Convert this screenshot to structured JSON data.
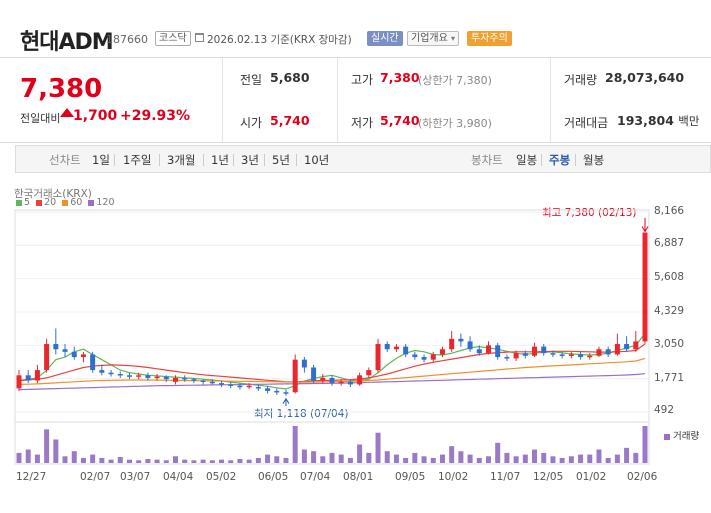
{
  "header": {
    "name": "현대ADM",
    "code": "187660",
    "market_tag": "코스닥",
    "date": "2026.02.13",
    "basis": "기준(KRX 장마감)",
    "realtime_tag": "실시간",
    "company_tag": "기업개요",
    "warning_tag": "투자주의"
  },
  "summary": {
    "price": "7,380",
    "change_label": "전일대비",
    "change_amount": "1,700",
    "change_percent": "+29.93%",
    "prev_close_label": "전일",
    "prev_close": "5,680",
    "open_label": "시가",
    "open": "5,740",
    "high_label": "고가",
    "high": "7,380",
    "high_sub": "(상한가 7,380)",
    "low_label": "저가",
    "low": "5,740",
    "low_sub": "(하한가 3,980)",
    "volume_label": "거래량",
    "volume": "28,073,640",
    "amount_label": "거래대금",
    "amount": "193,804",
    "amount_unit": "백만"
  },
  "toolbar": {
    "line_label": "선차트",
    "periods": [
      "1일",
      "1주일",
      "3개월",
      "1년",
      "3년",
      "5년",
      "10년"
    ],
    "candle_label": "봉차트",
    "candles": [
      "일봉",
      "주봉",
      "월봉"
    ],
    "active_candle": "주봉"
  },
  "chart_data": {
    "type": "candlestick",
    "source": "한국거래소(KRX)",
    "legend": [
      {
        "name": "5",
        "color": "#5cb85c"
      },
      {
        "name": "20",
        "color": "#e8433a"
      },
      {
        "name": "60",
        "color": "#f0902c"
      },
      {
        "name": "120",
        "color": "#9a6fc8"
      }
    ],
    "y_ticks": [
      "8,166",
      "6,887",
      "5,608",
      "4,329",
      "3,050",
      "1,771",
      "492"
    ],
    "x_ticks": [
      "12/27",
      "02/07",
      "03/07",
      "04/04",
      "05/02",
      "06/05",
      "07/04",
      "08/01",
      "09/05",
      "10/02",
      "11/07",
      "12/05",
      "01/02",
      "02/06"
    ],
    "ylim": [
      492,
      8166
    ],
    "max_label": "최고 7,380 (02/13)",
    "min_label": "최저 1,118 (07/04)",
    "volume_label": "거래량",
    "candles": [
      {
        "o": 1400,
        "c": 1900,
        "h": 2100,
        "l": 1300
      },
      {
        "o": 1900,
        "c": 1700,
        "h": 2100,
        "l": 1600
      },
      {
        "o": 1700,
        "c": 2100,
        "h": 2300,
        "l": 1600
      },
      {
        "o": 2100,
        "c": 3100,
        "h": 3300,
        "l": 2000
      },
      {
        "o": 3100,
        "c": 2900,
        "h": 3700,
        "l": 2700
      },
      {
        "o": 2900,
        "c": 2800,
        "h": 3100,
        "l": 2600
      },
      {
        "o": 2800,
        "c": 2600,
        "h": 3000,
        "l": 2500
      },
      {
        "o": 2600,
        "c": 2700,
        "h": 2800,
        "l": 2400
      },
      {
        "o": 2700,
        "c": 2100,
        "h": 2800,
        "l": 2000
      },
      {
        "o": 2100,
        "c": 2000,
        "h": 2300,
        "l": 1900
      },
      {
        "o": 2000,
        "c": 1950,
        "h": 2100,
        "l": 1850
      },
      {
        "o": 1950,
        "c": 1900,
        "h": 2050,
        "l": 1800
      },
      {
        "o": 1900,
        "c": 1850,
        "h": 2000,
        "l": 1750
      },
      {
        "o": 1850,
        "c": 1900,
        "h": 2000,
        "l": 1750
      },
      {
        "o": 1900,
        "c": 1800,
        "h": 2000,
        "l": 1700
      },
      {
        "o": 1800,
        "c": 1850,
        "h": 1950,
        "l": 1700
      },
      {
        "o": 1850,
        "c": 1750,
        "h": 1900,
        "l": 1650
      },
      {
        "o": 1650,
        "c": 1800,
        "h": 1900,
        "l": 1550
      },
      {
        "o": 1800,
        "c": 1750,
        "h": 1900,
        "l": 1650
      },
      {
        "o": 1750,
        "c": 1700,
        "h": 1800,
        "l": 1600
      },
      {
        "o": 1700,
        "c": 1650,
        "h": 1750,
        "l": 1550
      },
      {
        "o": 1650,
        "c": 1600,
        "h": 1750,
        "l": 1550
      },
      {
        "o": 1600,
        "c": 1550,
        "h": 1700,
        "l": 1450
      },
      {
        "o": 1550,
        "c": 1500,
        "h": 1650,
        "l": 1400
      },
      {
        "o": 1500,
        "c": 1450,
        "h": 1600,
        "l": 1350
      },
      {
        "o": 1450,
        "c": 1500,
        "h": 1600,
        "l": 1380
      },
      {
        "o": 1450,
        "c": 1400,
        "h": 1550,
        "l": 1300
      },
      {
        "o": 1400,
        "c": 1300,
        "h": 1500,
        "l": 1200
      },
      {
        "o": 1300,
        "c": 1250,
        "h": 1400,
        "l": 1150
      },
      {
        "o": 1250,
        "c": 1200,
        "h": 1350,
        "l": 1118
      },
      {
        "o": 1250,
        "c": 2500,
        "h": 2700,
        "l": 1200
      },
      {
        "o": 2500,
        "c": 2200,
        "h": 2600,
        "l": 2000
      },
      {
        "o": 2200,
        "c": 1700,
        "h": 2300,
        "l": 1600
      },
      {
        "o": 1700,
        "c": 1800,
        "h": 1950,
        "l": 1600
      },
      {
        "o": 1800,
        "c": 1600,
        "h": 1900,
        "l": 1500
      },
      {
        "o": 1600,
        "c": 1650,
        "h": 1750,
        "l": 1500
      },
      {
        "o": 1650,
        "c": 1550,
        "h": 1750,
        "l": 1450
      },
      {
        "o": 1550,
        "c": 1900,
        "h": 2000,
        "l": 1500
      },
      {
        "o": 1900,
        "c": 2100,
        "h": 2200,
        "l": 1800
      },
      {
        "o": 2100,
        "c": 3100,
        "h": 3300,
        "l": 2000
      },
      {
        "o": 3100,
        "c": 2900,
        "h": 3200,
        "l": 2800
      },
      {
        "o": 2900,
        "c": 3000,
        "h": 3100,
        "l": 2800
      },
      {
        "o": 3000,
        "c": 2700,
        "h": 3100,
        "l": 2600
      },
      {
        "o": 2700,
        "c": 2600,
        "h": 2800,
        "l": 2500
      },
      {
        "o": 2600,
        "c": 2500,
        "h": 2700,
        "l": 2400
      },
      {
        "o": 2500,
        "c": 2700,
        "h": 2800,
        "l": 2400
      },
      {
        "o": 2700,
        "c": 2900,
        "h": 3000,
        "l": 2600
      },
      {
        "o": 2900,
        "c": 3300,
        "h": 3600,
        "l": 2800
      },
      {
        "o": 3300,
        "c": 3200,
        "h": 3500,
        "l": 3000
      },
      {
        "o": 3200,
        "c": 2900,
        "h": 3400,
        "l": 2800
      },
      {
        "o": 2900,
        "c": 2750,
        "h": 3050,
        "l": 2650
      },
      {
        "o": 2750,
        "c": 3050,
        "h": 3200,
        "l": 2700
      },
      {
        "o": 3050,
        "c": 2600,
        "h": 3150,
        "l": 2500
      },
      {
        "o": 2600,
        "c": 2550,
        "h": 2700,
        "l": 2450
      },
      {
        "o": 2550,
        "c": 2750,
        "h": 2850,
        "l": 2450
      },
      {
        "o": 2750,
        "c": 2650,
        "h": 2850,
        "l": 2550
      },
      {
        "o": 2650,
        "c": 3000,
        "h": 3150,
        "l": 2600
      },
      {
        "o": 3000,
        "c": 2750,
        "h": 3100,
        "l": 2650
      },
      {
        "o": 2750,
        "c": 2700,
        "h": 2850,
        "l": 2600
      },
      {
        "o": 2700,
        "c": 2650,
        "h": 2800,
        "l": 2550
      },
      {
        "o": 2650,
        "c": 2700,
        "h": 2800,
        "l": 2550
      },
      {
        "o": 2700,
        "c": 2600,
        "h": 2800,
        "l": 2500
      },
      {
        "o": 2600,
        "c": 2650,
        "h": 2750,
        "l": 2500
      },
      {
        "o": 2650,
        "c": 2900,
        "h": 3000,
        "l": 2600
      },
      {
        "o": 2900,
        "c": 2700,
        "h": 3000,
        "l": 2600
      },
      {
        "o": 2700,
        "c": 3100,
        "h": 3500,
        "l": 2650
      },
      {
        "o": 3100,
        "c": 2900,
        "h": 3400,
        "l": 2800
      },
      {
        "o": 2900,
        "c": 3200,
        "h": 3600,
        "l": 2800
      },
      {
        "o": 3200,
        "c": 7380,
        "h": 7380,
        "l": 3100
      }
    ],
    "volume": [
      30,
      40,
      25,
      100,
      70,
      20,
      35,
      15,
      25,
      15,
      10,
      18,
      10,
      8,
      12,
      10,
      8,
      20,
      10,
      8,
      10,
      8,
      10,
      8,
      12,
      10,
      15,
      25,
      20,
      15,
      110,
      40,
      35,
      20,
      30,
      25,
      15,
      55,
      30,
      90,
      35,
      25,
      15,
      30,
      20,
      15,
      25,
      50,
      35,
      25,
      15,
      20,
      60,
      30,
      20,
      25,
      40,
      30,
      20,
      15,
      20,
      25,
      25,
      40,
      15,
      25,
      45,
      30,
      110
    ],
    "ma": {
      "5": [
        1700,
        1750,
        1800,
        2100,
        2500,
        2600,
        2800,
        2900,
        2700,
        2500,
        2300,
        2100,
        2000,
        1950,
        1900,
        1880,
        1850,
        1830,
        1800,
        1780,
        1750,
        1720,
        1680,
        1640,
        1600,
        1560,
        1520,
        1480,
        1420,
        1380,
        1500,
        1680,
        1780,
        1850,
        1900,
        1800,
        1700,
        1700,
        1750,
        2000,
        2300,
        2550,
        2750,
        2850,
        2800,
        2700,
        2680,
        2750,
        2850,
        2950,
        3000,
        2950,
        2900,
        2820,
        2750,
        2700,
        2750,
        2780,
        2800,
        2760,
        2720,
        2700,
        2680,
        2700,
        2750,
        2850,
        2950,
        3050,
        3500
      ],
      "20": [
        1700,
        1720,
        1750,
        1800,
        1900,
        2000,
        2100,
        2200,
        2250,
        2280,
        2300,
        2290,
        2270,
        2240,
        2200,
        2150,
        2100,
        2050,
        2000,
        1960,
        1920,
        1890,
        1860,
        1830,
        1800,
        1770,
        1740,
        1710,
        1680,
        1650,
        1650,
        1670,
        1690,
        1700,
        1710,
        1720,
        1730,
        1760,
        1800,
        1870,
        1950,
        2050,
        2150,
        2250,
        2330,
        2400,
        2460,
        2520,
        2580,
        2640,
        2700,
        2740,
        2770,
        2790,
        2800,
        2800,
        2800,
        2810,
        2820,
        2820,
        2820,
        2810,
        2800,
        2790,
        2790,
        2800,
        2820,
        2850,
        3100
      ],
      "60": [
        1550,
        1560,
        1570,
        1590,
        1610,
        1630,
        1650,
        1670,
        1690,
        1700,
        1710,
        1715,
        1720,
        1720,
        1720,
        1715,
        1710,
        1705,
        1700,
        1695,
        1690,
        1685,
        1680,
        1675,
        1670,
        1665,
        1660,
        1655,
        1650,
        1645,
        1640,
        1640,
        1645,
        1650,
        1655,
        1660,
        1670,
        1680,
        1700,
        1720,
        1750,
        1780,
        1810,
        1840,
        1870,
        1900,
        1930,
        1960,
        1990,
        2020,
        2050,
        2080,
        2110,
        2140,
        2170,
        2200,
        2220,
        2240,
        2260,
        2280,
        2300,
        2320,
        2340,
        2360,
        2380,
        2400,
        2420,
        2450,
        2550
      ],
      "120": [
        1350,
        1360,
        1370,
        1380,
        1390,
        1400,
        1410,
        1420,
        1430,
        1440,
        1450,
        1460,
        1470,
        1480,
        1490,
        1500,
        1505,
        1510,
        1515,
        1520,
        1525,
        1530,
        1535,
        1540,
        1545,
        1550,
        1555,
        1560,
        1565,
        1570,
        1575,
        1580,
        1585,
        1590,
        1595,
        1600,
        1610,
        1620,
        1630,
        1640,
        1650,
        1660,
        1670,
        1680,
        1690,
        1700,
        1710,
        1720,
        1730,
        1740,
        1750,
        1760,
        1770,
        1780,
        1790,
        1800,
        1810,
        1820,
        1830,
        1840,
        1850,
        1860,
        1870,
        1880,
        1890,
        1900,
        1910,
        1930,
        1960
      ]
    }
  }
}
